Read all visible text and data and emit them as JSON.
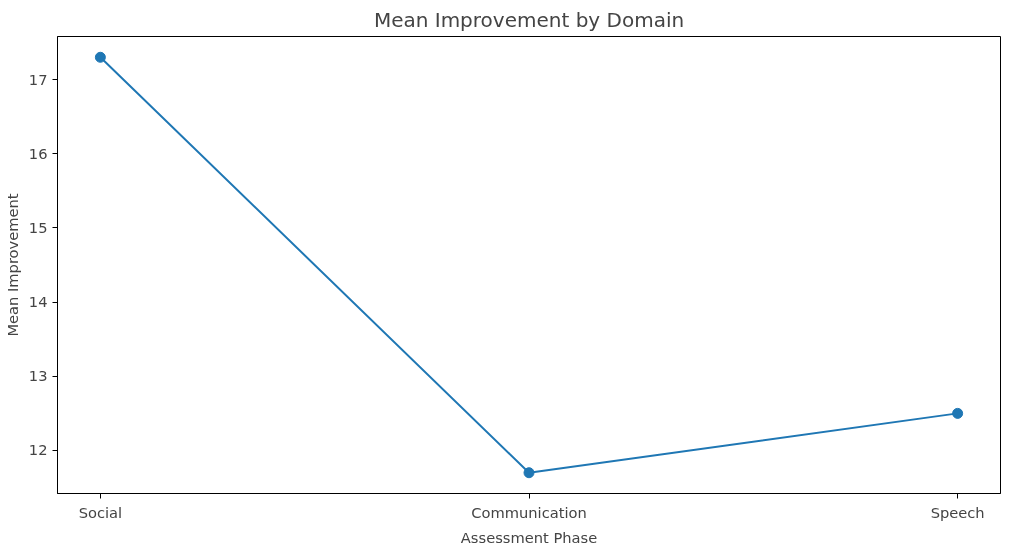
{
  "chart_data": {
    "type": "line",
    "title": "Mean Improvement by Domain",
    "xlabel": "Assessment Phase",
    "ylabel": "Mean Improvement",
    "categories": [
      "Social",
      "Communication",
      "Speech"
    ],
    "series": [
      {
        "color": "#1f77b4",
        "values": [
          17.3,
          11.7,
          12.5
        ]
      }
    ],
    "ylim": [
      11.42,
      17.58
    ],
    "yticks": [
      12,
      13,
      14,
      15,
      16,
      17
    ],
    "grid": false,
    "marker": "circle",
    "line_style": "solid"
  }
}
